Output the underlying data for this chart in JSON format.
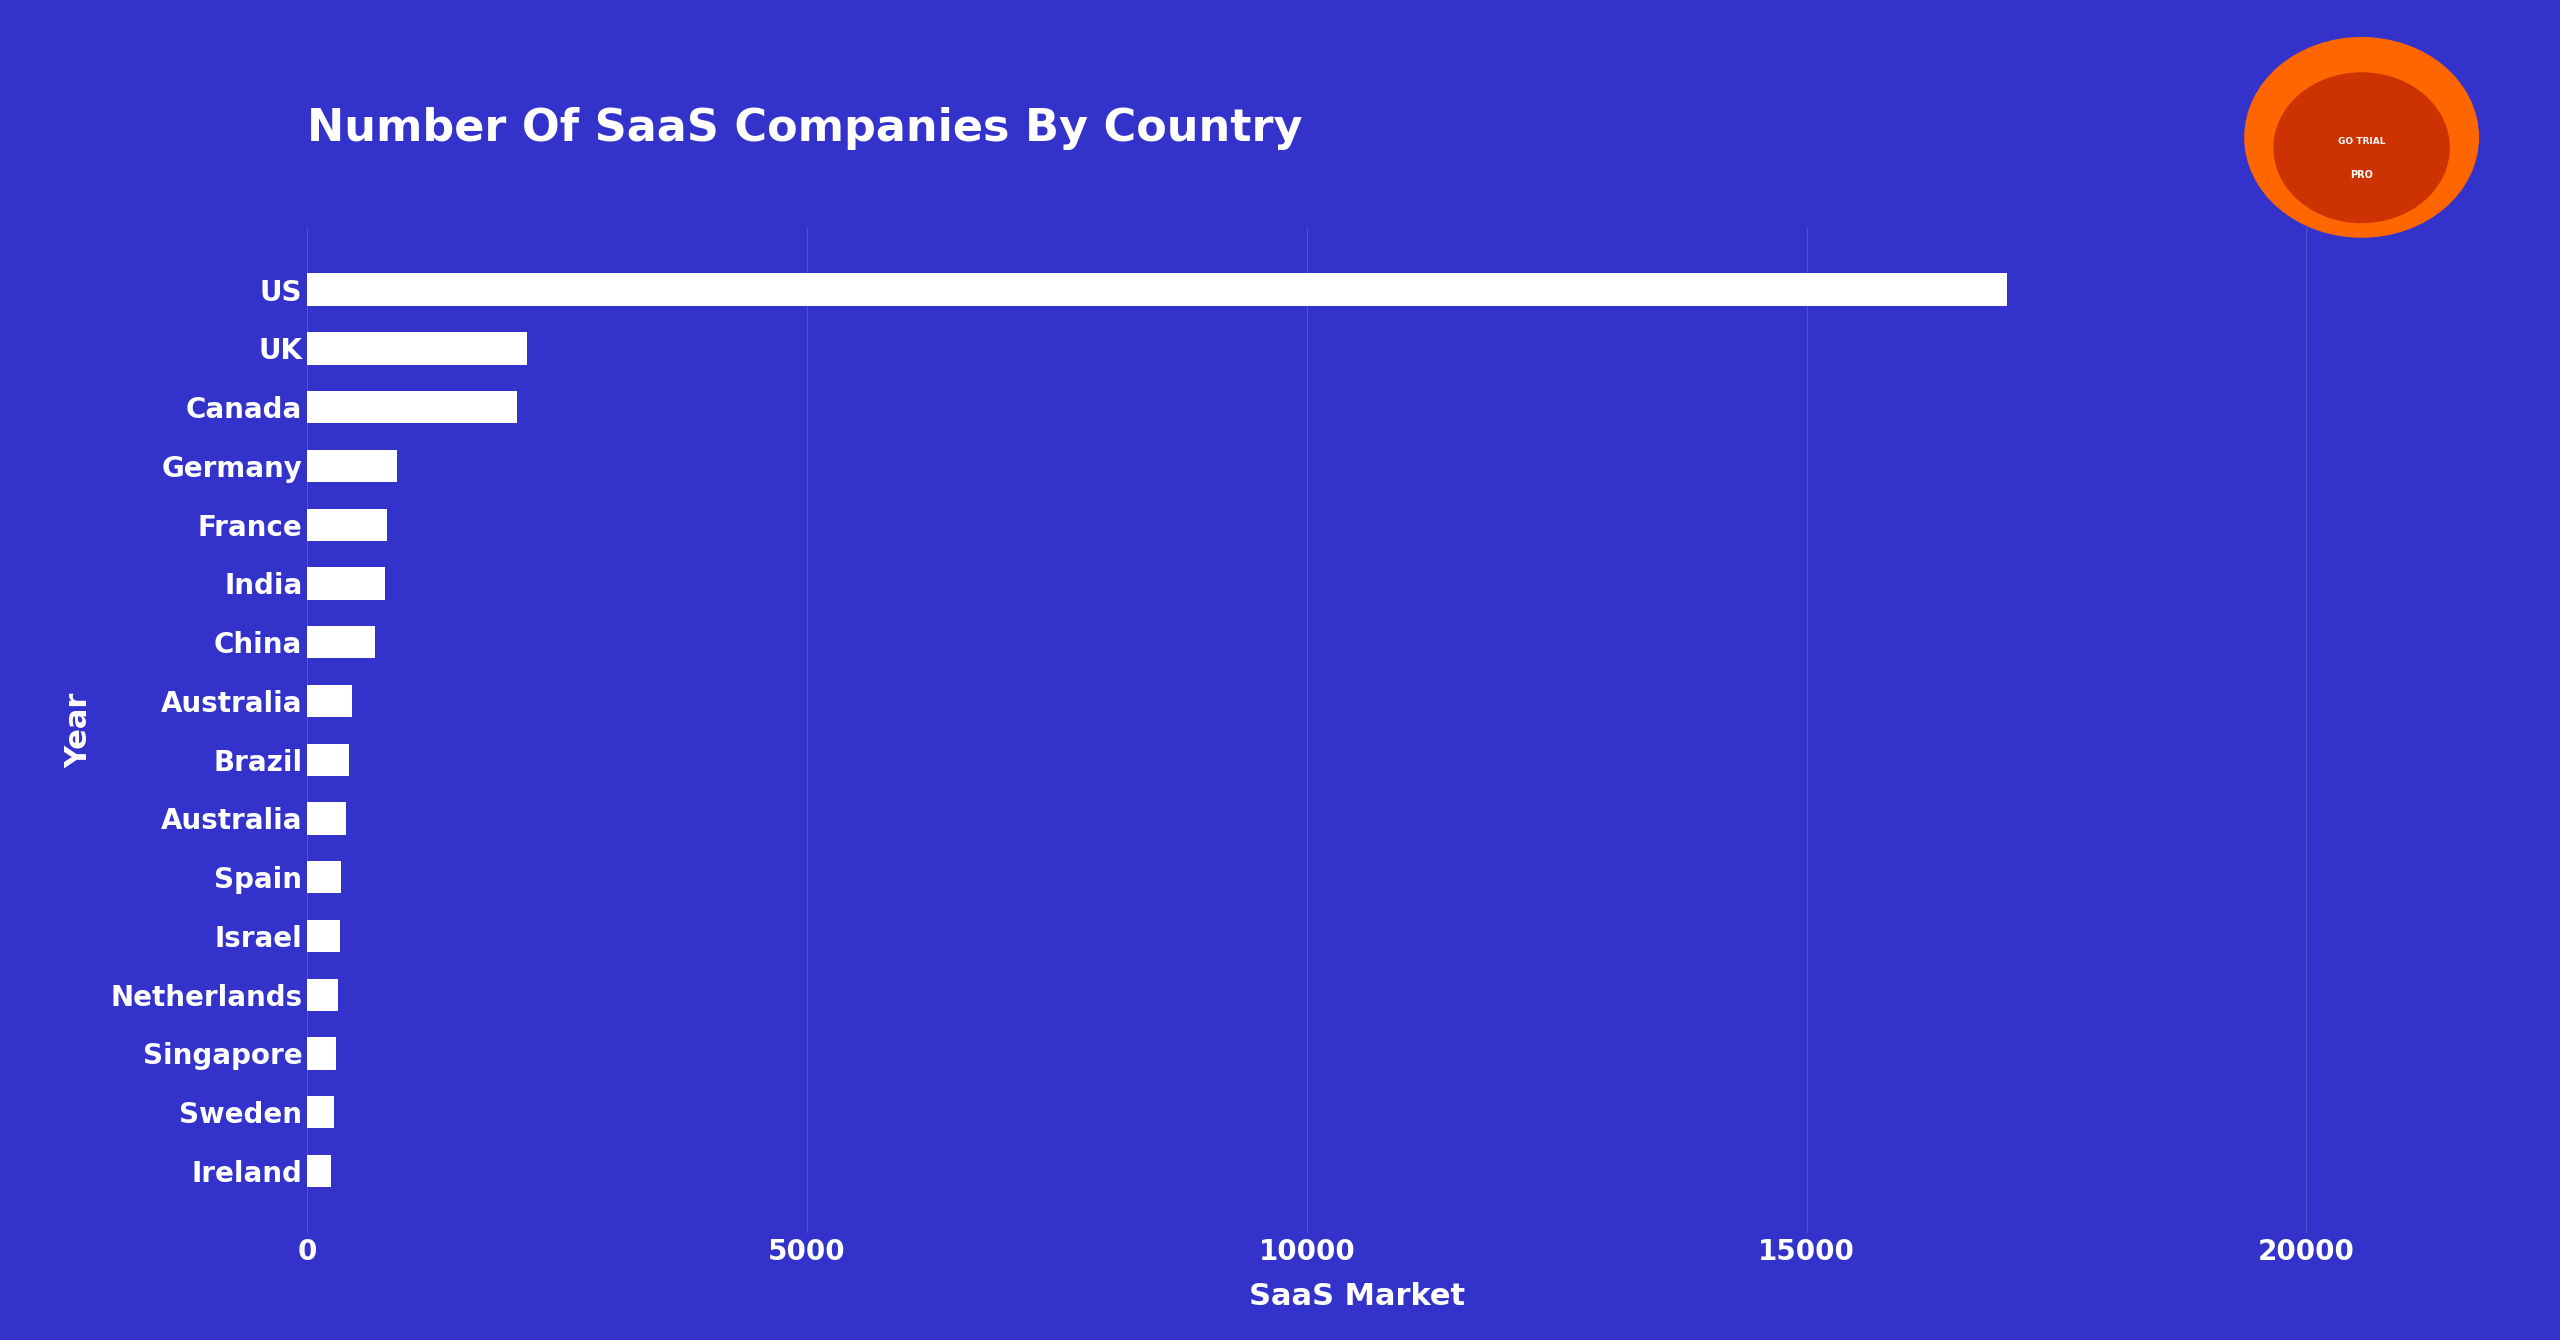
{
  "title": "Number Of SaaS Companies By Country",
  "xlabel": "SaaS Market",
  "ylabel": "Year",
  "background_color": "#3333CC",
  "bar_color": "#FFFFFF",
  "text_color": "#FFFFFF",
  "categories": [
    "US",
    "UK",
    "Canada",
    "Germany",
    "France",
    "India",
    "China",
    "Australia",
    "Brazil",
    "Australia",
    "Spain",
    "Israel",
    "Netherlands",
    "Singapore",
    "Sweden",
    "Ireland"
  ],
  "values": [
    17000,
    2200,
    2100,
    900,
    800,
    780,
    680,
    450,
    420,
    390,
    340,
    330,
    310,
    290,
    265,
    240
  ],
  "xlim": [
    0,
    21000
  ],
  "xticks": [
    0,
    5000,
    10000,
    15000,
    20000
  ],
  "title_fontsize": 32,
  "axis_label_fontsize": 22,
  "tick_fontsize": 20,
  "category_fontsize": 20,
  "bar_height": 0.55
}
